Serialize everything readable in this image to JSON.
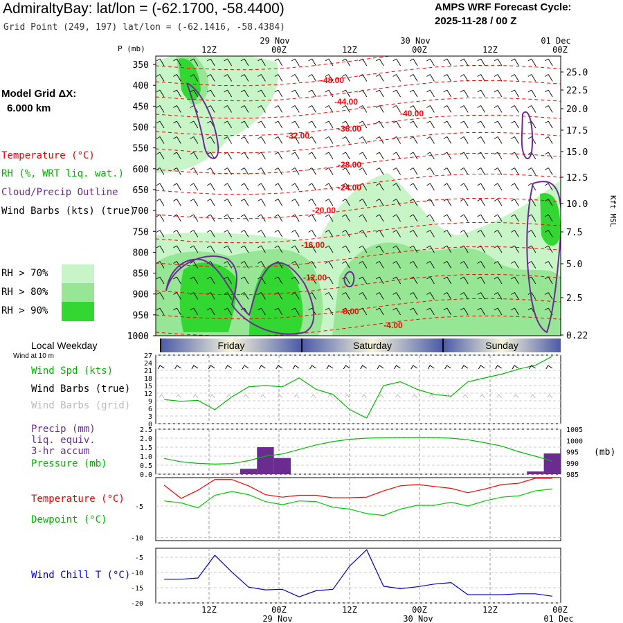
{
  "header": {
    "title": "AdmiraltyBay:  lat/lon = (-62.1700, -58.4400)",
    "subtitle": "Grid Point (249, 197) lat/lon = (-62.1416, -58.4384)",
    "cycle_label": "AMPS WRF Forecast Cycle:",
    "cycle_value": "2025-11-28 / 00  Z"
  },
  "left_panel": {
    "grid_label": "Model Grid ΔX:",
    "grid_value": "6.000 km",
    "legend": {
      "temperature": "Temperature (°C)",
      "rh": "RH (%, WRT liq. wat.)",
      "cloud": "Cloud/Precip Outline",
      "wind": "Wind Barbs (kts) (true)"
    },
    "rh_key": [
      {
        "label": "RH > 70%",
        "color": "#c8f5c8"
      },
      {
        "label": "RH > 80%",
        "color": "#96e696"
      },
      {
        "label": "RH > 90%",
        "color": "#32d732"
      }
    ],
    "weekday_label": "Local Weekday",
    "wind_at_label": "Wind at 10 m",
    "wind_spd_label": "Wind Spd (kts)",
    "wind_barbs_true_label": "Wind Barbs (true)",
    "wind_barbs_grid_label": "Wind Barbs (grid)",
    "precip_label_1": "Precip (mm)",
    "precip_label_2": "liq. equiv.",
    "precip_label_3": "3-hr accum",
    "pressure_label": "Pressure (mb)",
    "temp_label": "Temperature (°C)",
    "dew_label": "Dewpoint (°C)",
    "chill_label": "Wind Chill T (°C)"
  },
  "time_axis": {
    "hour_ticks": [
      "12Z",
      "00Z",
      "12Z",
      "00Z",
      "12Z",
      "00Z"
    ],
    "date_ticks": [
      "29 Nov",
      "30 Nov",
      "01 Dec"
    ],
    "weekdays": [
      "Friday",
      "Saturday",
      "Sunday"
    ]
  },
  "colors": {
    "temperature": "#ff0000",
    "dewpoint": "#00cc00",
    "pressure": "#00bb00",
    "wind_speed": "#00bb00",
    "wind_chill": "#0000cc",
    "precip": "#6a2c91",
    "cloud_outline": "#6a2c91",
    "grid": "#999999"
  },
  "chart_data": [
    {
      "type": "heatmap",
      "y_axis_label": "P (mb)",
      "right_axis_label": "Kft MSL",
      "pressure_ticks": [
        "350",
        "400",
        "450",
        "500",
        "550",
        "600",
        "650",
        "700",
        "750",
        "800",
        "850",
        "900",
        "950",
        "1000"
      ],
      "height_ticks": [
        "25.0",
        "22.5",
        "20.0",
        "17.5",
        "15.0",
        "12.5",
        "10.0",
        "7.5",
        "5.0",
        "2.5",
        "0.22"
      ],
      "isotherm_labels": [
        "-48.00",
        "-44.00",
        "-40.00",
        "-36.00",
        "-32.00",
        "-28.00",
        "-24.00",
        "-20.00",
        "-16.00",
        "-12.00",
        "-8.00",
        "-4.00"
      ],
      "ylim": [
        1000,
        330
      ]
    },
    {
      "type": "line",
      "title": "Wind Spd (kts)",
      "y_ticks": [
        "0",
        "3",
        "6",
        "9",
        "12",
        "15",
        "18",
        "21",
        "24",
        "27"
      ],
      "ylim": [
        0,
        27
      ],
      "values": [
        9.5,
        8.8,
        9.2,
        5.5,
        10.5,
        14.5,
        15,
        14.5,
        18,
        13.5,
        11.5,
        5.5,
        2.2,
        15,
        16.5,
        13.5,
        11.5,
        10.8,
        16.5,
        18,
        19.5,
        21.5,
        23,
        26.5
      ]
    },
    {
      "type": "bar",
      "title": "Precip (mm)",
      "y_ticks": [
        "0.0",
        "0.5",
        "1.0",
        "1.5",
        "2.0",
        "2.5"
      ],
      "ylim": [
        0,
        2.5
      ],
      "values": [
        0,
        0,
        0,
        0,
        0.02,
        0.3,
        1.5,
        0.9,
        0,
        0,
        0,
        0,
        0,
        0,
        0,
        0,
        0,
        0,
        0,
        0,
        0,
        0,
        0.15,
        1.15
      ]
    },
    {
      "type": "line",
      "title": "Pressure (mb)",
      "right_label": "(mb)",
      "y_ticks": [
        "985",
        "990",
        "995",
        "1000",
        "1005"
      ],
      "ylim": [
        985,
        1005
      ],
      "values": [
        992,
        990.5,
        989.8,
        989.5,
        989.7,
        991,
        993,
        994,
        996,
        998,
        999.5,
        1000.5,
        1001,
        1001.2,
        1001.3,
        1001.3,
        1001.3,
        1001,
        1000.3,
        999,
        997.5,
        995,
        993,
        990.8
      ]
    },
    {
      "type": "line",
      "title": "Temperature / Dewpoint (°C)",
      "y_ticks": [
        "-5",
        "-10"
      ],
      "ylim": [
        -10.5,
        -0.5
      ],
      "series": [
        {
          "name": "Temperature (°C)",
          "values": [
            -1.7,
            -3.8,
            -2.5,
            -0.8,
            -0.8,
            -1.8,
            -3.2,
            -3.6,
            -3.3,
            -3.3,
            -3.7,
            -3.7,
            -3.6,
            -2.6,
            -1.8,
            -1.6,
            -1.9,
            -2.2,
            -2.9,
            -2.3,
            -1.6,
            -1.4,
            -0.6,
            -0.6
          ]
        },
        {
          "name": "Dewpoint (°C)",
          "values": [
            -4.2,
            -4.5,
            -5.3,
            -3.3,
            -2.7,
            -3.2,
            -4.3,
            -4.8,
            -4.2,
            -4.3,
            -5.2,
            -5.5,
            -6.2,
            -6.5,
            -5.5,
            -4.9,
            -4.9,
            -4.4,
            -5.0,
            -4.2,
            -3.6,
            -3.4,
            -2.6,
            -2.3
          ]
        }
      ]
    },
    {
      "type": "line",
      "title": "Wind Chill T (°C)",
      "y_ticks": [
        "-5",
        "-10",
        "-15",
        "-20"
      ],
      "ylim": [
        -20,
        -2
      ],
      "values": [
        -12.2,
        -12.2,
        -11.8,
        -4.3,
        -9.8,
        -14.8,
        -15.7,
        -15.5,
        -18.0,
        -16.0,
        -15.5,
        -7.8,
        -2.5,
        -14.5,
        -15.3,
        -14.7,
        -13.8,
        -13.3,
        -17.3,
        -17.3,
        -17.3,
        -17.0,
        -17.0,
        -17.8
      ]
    }
  ]
}
